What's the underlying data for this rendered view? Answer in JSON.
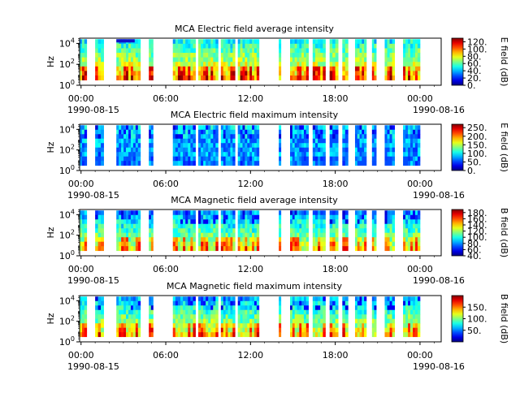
{
  "chart_data": [
    {
      "type": "heatmap",
      "title": "MCA  Electric field average intensity",
      "ylabel": "Hz",
      "colorbar_label": "E field (dB)",
      "colorbar_ticks": [
        "0.",
        "20.",
        "40.",
        "60.",
        "80.",
        "100.",
        "120."
      ],
      "clim": [
        0,
        130
      ],
      "ylim_exp": [
        0,
        4.5
      ],
      "y_ticks": [
        {
          "base": "10",
          "exp": "0"
        },
        {
          "base": "10",
          "exp": "2"
        },
        {
          "base": "10",
          "exp": "4"
        }
      ],
      "x_ticks": [
        "00:00",
        "06:00",
        "12:00",
        "18:00",
        "00:00"
      ],
      "x_dates": [
        "1990-08-15",
        "1990-08-16"
      ],
      "base_level": 0.52,
      "vivid": true,
      "dark_blobs": false,
      "top_gap_blob": true
    },
    {
      "type": "heatmap",
      "title": "MCA  Electric field maximum intensity",
      "ylabel": "Hz",
      "colorbar_label": "E field (dB)",
      "colorbar_ticks": [
        "0.",
        "50.",
        "100.",
        "150.",
        "200.",
        "250."
      ],
      "clim": [
        0,
        270
      ],
      "ylim_exp": [
        0,
        4.5
      ],
      "y_ticks": [
        {
          "base": "10",
          "exp": "0"
        },
        {
          "base": "10",
          "exp": "2"
        },
        {
          "base": "10",
          "exp": "4"
        }
      ],
      "x_ticks": [
        "00:00",
        "06:00",
        "12:00",
        "18:00",
        "00:00"
      ],
      "x_dates": [
        "1990-08-15",
        "1990-08-16"
      ],
      "base_level": 0.33,
      "vivid": false,
      "dark_blobs": true,
      "top_gap_blob": false
    },
    {
      "type": "heatmap",
      "title": "MCA  Magnetic field average intensity",
      "ylabel": "Hz",
      "colorbar_label": "B field (dB)",
      "colorbar_ticks": [
        "40.",
        "60.",
        "80.",
        "100.",
        "120.",
        "140.",
        "160.",
        "180."
      ],
      "clim": [
        40,
        190
      ],
      "ylim_exp": [
        0,
        4.5
      ],
      "y_ticks": [
        {
          "base": "10",
          "exp": "0"
        },
        {
          "base": "10",
          "exp": "2"
        },
        {
          "base": "10",
          "exp": "4"
        }
      ],
      "x_ticks": [
        "00:00",
        "06:00",
        "12:00",
        "18:00",
        "00:00"
      ],
      "x_dates": [
        "1990-08-15",
        "1990-08-16"
      ],
      "base_level": 0.42,
      "vivid": true,
      "dark_blobs": true,
      "top_gap_blob": false
    },
    {
      "type": "heatmap",
      "title": "MCA  Magnetic field maximum intensity",
      "ylabel": "Hz",
      "colorbar_label": "B field (dB)",
      "colorbar_ticks": [
        "50.",
        "100.",
        "150."
      ],
      "clim": [
        0,
        200
      ],
      "ylim_exp": [
        0,
        4.5
      ],
      "y_ticks": [
        {
          "base": "10",
          "exp": "0"
        },
        {
          "base": "10",
          "exp": "2"
        },
        {
          "base": "10",
          "exp": "4"
        }
      ],
      "x_ticks": [
        "00:00",
        "06:00",
        "12:00",
        "18:00",
        "00:00"
      ],
      "x_dates": [
        "1990-08-15",
        "1990-08-16"
      ],
      "base_level": 0.45,
      "vivid": true,
      "dark_blobs": true,
      "top_gap_blob": false
    }
  ],
  "data_intervals_hours": [
    [
      -0.1,
      0.4
    ],
    [
      1.0,
      1.6
    ],
    [
      2.5,
      4.2
    ],
    [
      4.8,
      5.1
    ],
    [
      6.5,
      8.1
    ],
    [
      8.3,
      9.7
    ],
    [
      9.9,
      10.9
    ],
    [
      11.1,
      12.6
    ],
    [
      14.0,
      14.15
    ],
    [
      14.8,
      16.1
    ],
    [
      16.4,
      17.3
    ],
    [
      17.6,
      18.2
    ],
    [
      18.5,
      18.9
    ],
    [
      19.4,
      20.2
    ],
    [
      20.6,
      20.9
    ],
    [
      21.5,
      22.2
    ],
    [
      22.8,
      24.0
    ]
  ]
}
